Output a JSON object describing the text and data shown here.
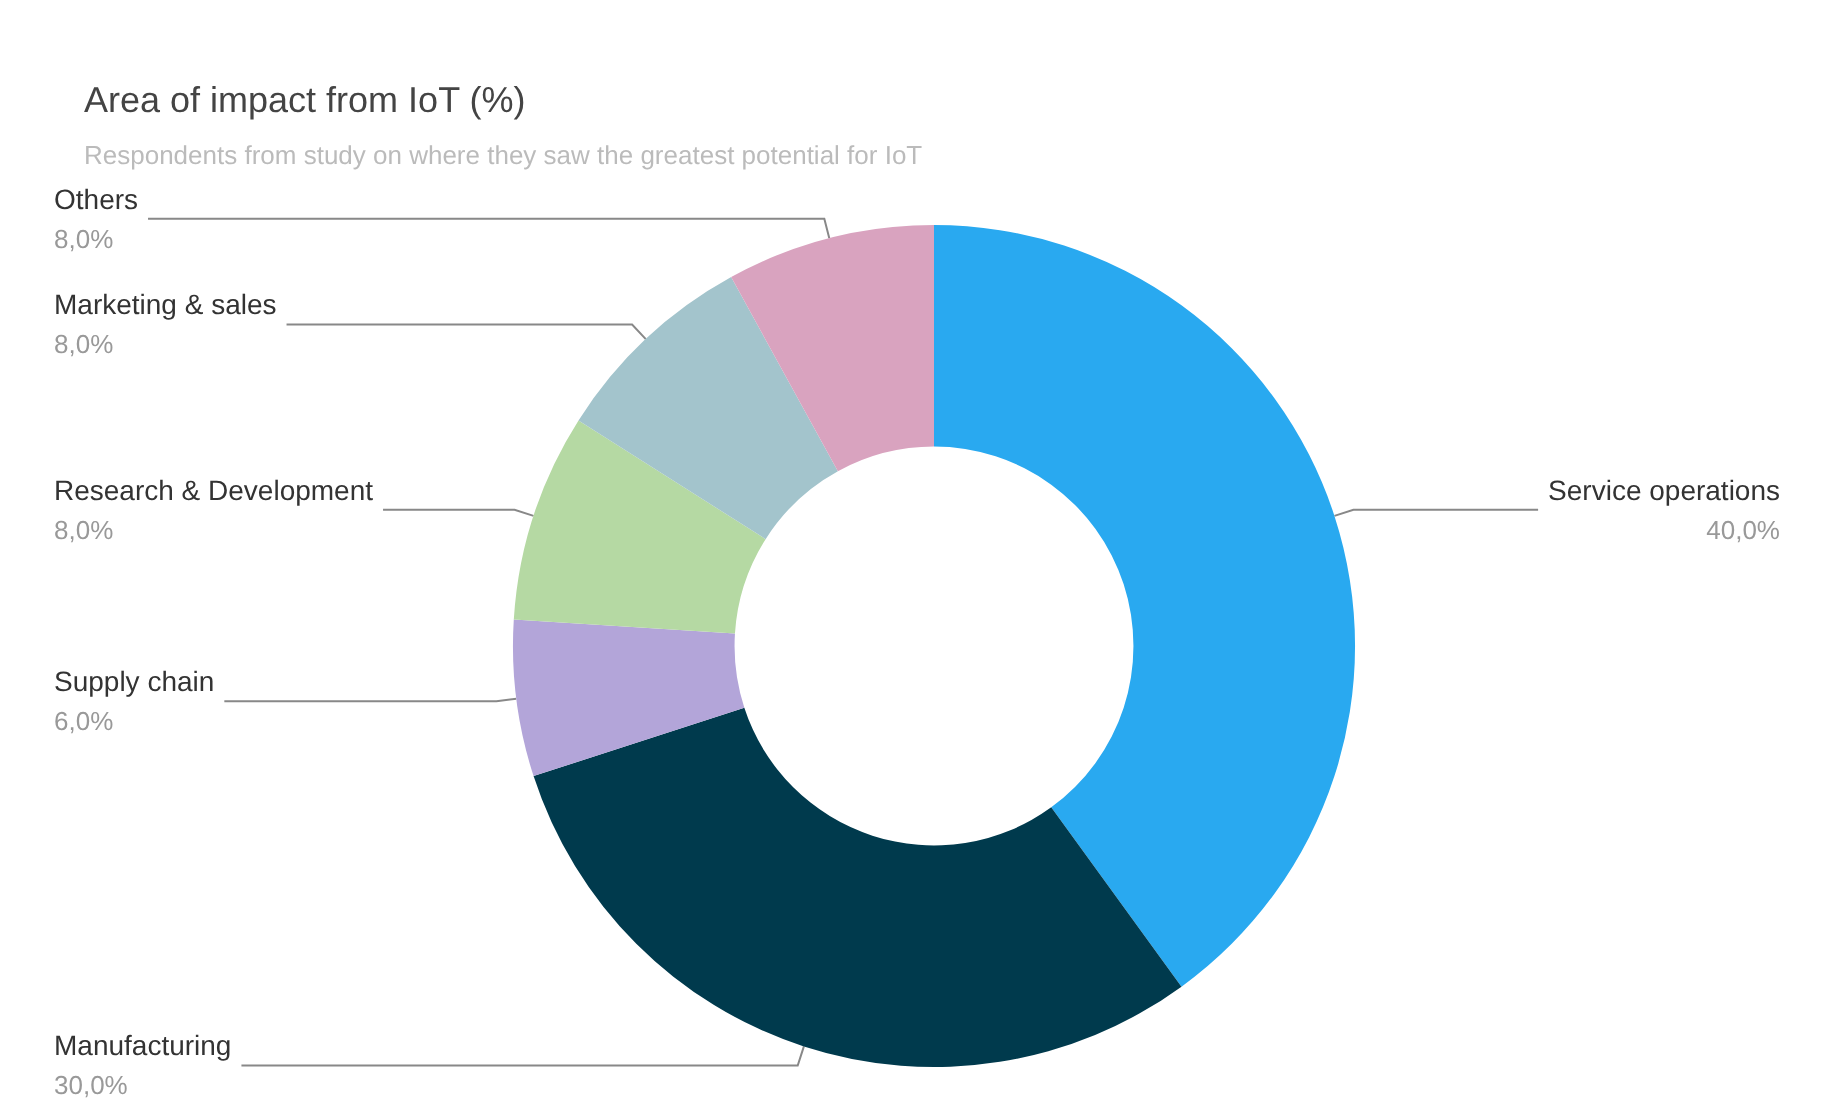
{
  "chart_data": {
    "type": "donut",
    "title": "Area of impact from IoT (%)",
    "subtitle": "Respondents from study on where they saw the greatest potential for IoT",
    "categories": [
      "Service operations",
      "Manufacturing",
      "Supply chain",
      "Research & Development",
      "Marketing & sales",
      "Others"
    ],
    "values": [
      40,
      30,
      6,
      8,
      8,
      8
    ],
    "value_labels": [
      "40,0%",
      "30,0%",
      "6,0%",
      "8,0%",
      "8,0%",
      "8,0%"
    ],
    "colors": [
      "#29a9f0",
      "#003a4d",
      "#b3a5d9",
      "#b5d9a3",
      "#a3c4cc",
      "#d9a3bf"
    ],
    "legend": false
  }
}
